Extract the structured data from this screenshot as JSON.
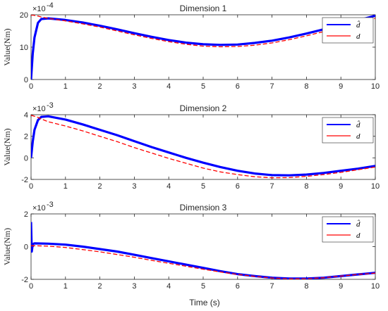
{
  "figure": {
    "xlabel": "Time (s)"
  },
  "chart_data": [
    {
      "type": "line",
      "title": "Dimension 1",
      "ylabel": "Value(Nm)",
      "xlabel": "",
      "multiplier_label": "×10",
      "multiplier_exp": "-4",
      "xlim": [
        0,
        10
      ],
      "ylim": [
        0,
        20
      ],
      "xticks": [
        0,
        1,
        2,
        3,
        4,
        5,
        6,
        7,
        8,
        9,
        10
      ],
      "yticks": [
        0,
        10,
        20
      ],
      "grid": false,
      "legend_position": "top-right",
      "x": [
        0,
        0.05,
        0.1,
        0.2,
        0.3,
        0.5,
        1,
        1.5,
        2,
        2.5,
        3,
        3.5,
        4,
        4.5,
        5,
        5.5,
        6,
        6.5,
        7,
        7.5,
        8,
        8.5,
        9,
        9.5,
        10
      ],
      "series": [
        {
          "name": "d̂",
          "color": "#0000ff",
          "values": [
            0,
            8,
            13,
            17.5,
            18.7,
            18.9,
            18.4,
            17.6,
            16.6,
            15.5,
            14.3,
            13.2,
            12.2,
            11.4,
            10.9,
            10.7,
            10.8,
            11.3,
            12.0,
            13.0,
            14.2,
            15.5,
            16.9,
            18.3,
            19.7
          ]
        },
        {
          "name": "d",
          "color": "#ff0000",
          "values": [
            19.9,
            19.9,
            19.8,
            19.6,
            19.3,
            18.9,
            18.1,
            17.2,
            16.2,
            15.0,
            13.8,
            12.7,
            11.7,
            10.9,
            10.3,
            10.1,
            10.2,
            10.6,
            11.3,
            12.3,
            13.5,
            14.8,
            16.2,
            17.6,
            18.9
          ]
        }
      ]
    },
    {
      "type": "line",
      "title": "Dimension 2",
      "ylabel": "Value(Nm)",
      "xlabel": "",
      "multiplier_label": "×10",
      "multiplier_exp": "-3",
      "xlim": [
        0,
        10
      ],
      "ylim": [
        -2,
        4
      ],
      "xticks": [
        0,
        1,
        2,
        3,
        4,
        5,
        6,
        7,
        8,
        9,
        10
      ],
      "yticks": [
        -2,
        0,
        2,
        4
      ],
      "grid": false,
      "legend_position": "top-right",
      "x": [
        0,
        0.05,
        0.1,
        0.2,
        0.3,
        0.5,
        1,
        1.5,
        2,
        2.5,
        3,
        3.5,
        4,
        4.5,
        5,
        5.5,
        6,
        6.5,
        7,
        7.5,
        8,
        8.5,
        9,
        9.5,
        10
      ],
      "series": [
        {
          "name": "d̂",
          "color": "#0000ff",
          "values": [
            0,
            1.5,
            2.6,
            3.5,
            3.8,
            3.85,
            3.55,
            3.1,
            2.6,
            2.1,
            1.55,
            1.0,
            0.5,
            0.0,
            -0.45,
            -0.85,
            -1.2,
            -1.45,
            -1.6,
            -1.62,
            -1.55,
            -1.4,
            -1.2,
            -1.0,
            -0.75
          ]
        },
        {
          "name": "d",
          "color": "#ff0000",
          "values": [
            3.95,
            3.9,
            3.85,
            3.75,
            3.6,
            3.35,
            2.95,
            2.5,
            2.0,
            1.5,
            0.95,
            0.45,
            -0.05,
            -0.5,
            -0.95,
            -1.3,
            -1.55,
            -1.75,
            -1.85,
            -1.83,
            -1.72,
            -1.55,
            -1.35,
            -1.1,
            -0.85
          ]
        }
      ]
    },
    {
      "type": "line",
      "title": "Dimension 3",
      "ylabel": "Value(Nm)",
      "xlabel": "Time (s)",
      "multiplier_label": "×10",
      "multiplier_exp": "-3",
      "xlim": [
        0,
        10
      ],
      "ylim": [
        -2,
        2
      ],
      "xticks": [
        0,
        1,
        2,
        3,
        4,
        5,
        6,
        7,
        8,
        9,
        10
      ],
      "yticks": [
        -2,
        0,
        2
      ],
      "grid": false,
      "legend_position": "top-right",
      "x": [
        0,
        0.02,
        0.05,
        0.1,
        0.5,
        1,
        1.5,
        2,
        2.5,
        3,
        3.5,
        4,
        4.5,
        5,
        5.5,
        6,
        6.5,
        7,
        7.5,
        8,
        8.5,
        9,
        9.5,
        10
      ],
      "series": [
        {
          "name": "d̂",
          "color": "#0000ff",
          "values": [
            1.5,
            -0.3,
            0.15,
            0.2,
            0.18,
            0.12,
            0.0,
            -0.15,
            -0.3,
            -0.5,
            -0.7,
            -0.9,
            -1.1,
            -1.3,
            -1.5,
            -1.68,
            -1.8,
            -1.9,
            -1.95,
            -1.95,
            -1.9,
            -1.8,
            -1.7,
            -1.6
          ]
        },
        {
          "name": "d",
          "color": "#ff0000",
          "values": [
            0.05,
            0.05,
            0.05,
            0.05,
            0.03,
            -0.05,
            -0.18,
            -0.32,
            -0.48,
            -0.65,
            -0.84,
            -1.02,
            -1.2,
            -1.38,
            -1.55,
            -1.7,
            -1.82,
            -1.92,
            -1.97,
            -1.96,
            -1.9,
            -1.8,
            -1.7,
            -1.62
          ]
        }
      ]
    }
  ]
}
